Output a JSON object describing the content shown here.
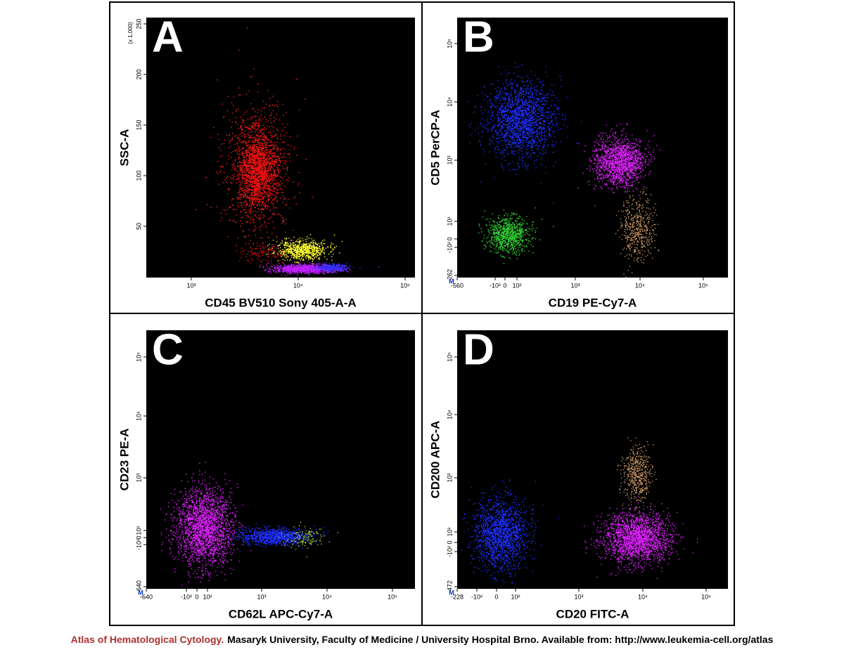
{
  "panels": [
    {
      "letter": "A",
      "x_label": "CD45 BV510 Sony 405-A-A",
      "y_label": "SSC-A",
      "y_scale_note": "(x 1,000)",
      "x_ticks": [
        "10³",
        "10⁴",
        "10⁵"
      ],
      "y_ticks": [
        "50",
        "100",
        "150",
        "200",
        "250"
      ]
    },
    {
      "letter": "B",
      "x_label": "CD19 PE-Cy7-A",
      "y_label": "CD5 PerCP-A",
      "corner_marker": "M",
      "x_ticks": [
        "-560",
        "-10²",
        "0",
        "10²",
        "10³",
        "10⁴",
        "10⁵"
      ],
      "y_ticks": [
        "-262",
        "-10²",
        "0",
        "10²",
        "10³",
        "10⁴",
        "10⁵"
      ]
    },
    {
      "letter": "C",
      "x_label": "CD62L APC-Cy7-A",
      "y_label": "CD23 PE-A",
      "corner_marker": "M",
      "x_ticks": [
        "-640",
        "-10²",
        "0",
        "10²",
        "10³",
        "10⁴",
        "10⁵"
      ],
      "y_ticks": [
        "-640",
        "-10²",
        "0",
        "10²",
        "10³",
        "10⁴",
        "10⁵"
      ]
    },
    {
      "letter": "D",
      "x_label": "CD20 FITC-A",
      "y_label": "CD200 APC-A",
      "corner_marker": "M",
      "x_ticks": [
        "-228",
        "-10²",
        "0",
        "10²",
        "10³",
        "10⁴",
        "10⁵"
      ],
      "y_ticks": [
        "-472",
        "-10²",
        "0",
        "10²",
        "10³",
        "10⁴",
        "10⁵"
      ]
    }
  ],
  "footer": {
    "source": "Atlas of Hematological Cytology.",
    "credit": "Masaryk University, Faculty of Medicine / University Hospital Brno. Available from: http://www.leukemia-cell.org/atlas"
  }
}
